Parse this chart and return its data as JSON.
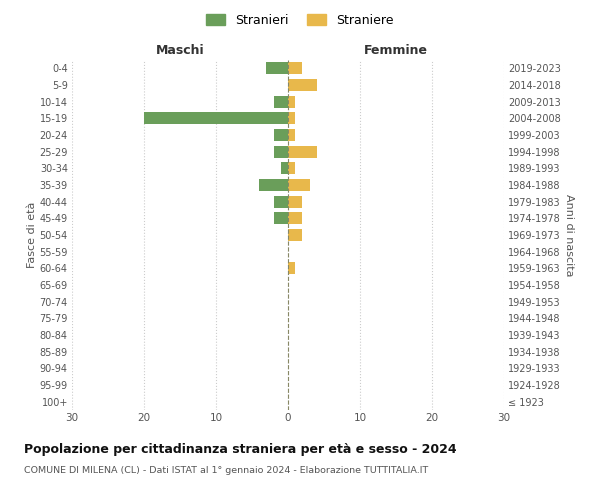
{
  "age_groups": [
    "100+",
    "95-99",
    "90-94",
    "85-89",
    "80-84",
    "75-79",
    "70-74",
    "65-69",
    "60-64",
    "55-59",
    "50-54",
    "45-49",
    "40-44",
    "35-39",
    "30-34",
    "25-29",
    "20-24",
    "15-19",
    "10-14",
    "5-9",
    "0-4"
  ],
  "birth_years": [
    "≤ 1923",
    "1924-1928",
    "1929-1933",
    "1934-1938",
    "1939-1943",
    "1944-1948",
    "1949-1953",
    "1954-1958",
    "1959-1963",
    "1964-1968",
    "1969-1973",
    "1974-1978",
    "1979-1983",
    "1984-1988",
    "1989-1993",
    "1994-1998",
    "1999-2003",
    "2004-2008",
    "2009-2013",
    "2014-2018",
    "2019-2023"
  ],
  "maschi": [
    0,
    0,
    0,
    0,
    0,
    0,
    0,
    0,
    0,
    0,
    0,
    2,
    2,
    4,
    1,
    2,
    2,
    20,
    2,
    0,
    3
  ],
  "femmine": [
    0,
    0,
    0,
    0,
    0,
    0,
    0,
    0,
    1,
    0,
    2,
    2,
    2,
    3,
    1,
    4,
    1,
    1,
    1,
    4,
    2
  ],
  "color_maschi": "#6a9e5a",
  "color_femmine": "#e8b84b",
  "title": "Popolazione per cittadinanza straniera per età e sesso - 2024",
  "subtitle": "COMUNE DI MILENA (CL) - Dati ISTAT al 1° gennaio 2024 - Elaborazione TUTTITALIA.IT",
  "xlabel_left": "Maschi",
  "xlabel_right": "Femmine",
  "ylabel_left": "Fasce di età",
  "ylabel_right": "Anni di nascita",
  "legend_maschi": "Stranieri",
  "legend_femmine": "Straniere",
  "xlim": 30,
  "background_color": "#ffffff",
  "grid_color": "#cccccc"
}
